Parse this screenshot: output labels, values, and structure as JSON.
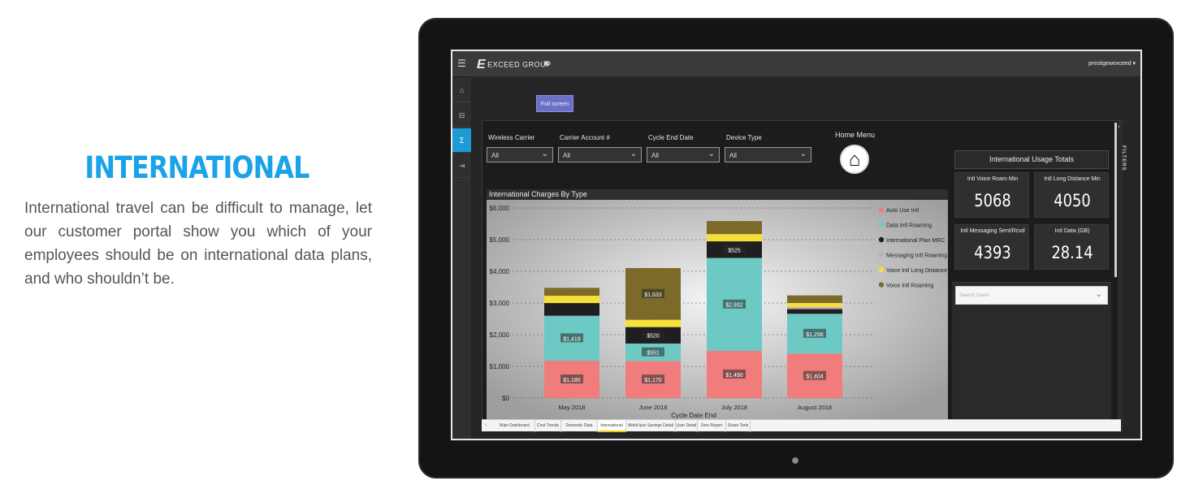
{
  "promo": {
    "heading": "INTERNATIONAL",
    "body": "International travel can be difficult to manage, let our customer portal show you which of your employees should be on international data plans, and who shouldn’t be."
  },
  "app": {
    "brand": "EXCEED GROUP",
    "user": "prestigewexceed",
    "fullscreen_label": "Full screen"
  },
  "filters": [
    {
      "label": "Wireless Carrier",
      "value": "All"
    },
    {
      "label": "Carrier Account #",
      "value": "All"
    },
    {
      "label": "Cycle End Date",
      "value": "All"
    },
    {
      "label": "Device Type",
      "value": "All"
    }
  ],
  "home_menu": {
    "label": "Home Menu"
  },
  "kpis": {
    "title": "International Usage Totals",
    "cards": [
      {
        "label": "Intl Voice Roam Min",
        "value": "5068"
      },
      {
        "label": "Intl Long Distance Min",
        "value": "4050"
      },
      {
        "label": "Intl Messaging Sent/Rcvd",
        "value": "4393"
      },
      {
        "label": "Intl Data (GB)",
        "value": "28.14"
      }
    ]
  },
  "search": {
    "placeholder": "Search Users"
  },
  "filters_pane_label": "FILTERS",
  "tabs": [
    {
      "label": "Main Dashboard",
      "active": false
    },
    {
      "label": "Cost Trends",
      "active": false
    },
    {
      "label": "Domestic Data",
      "active": false
    },
    {
      "label": "International",
      "active": true
    },
    {
      "label": "Mobil-lyze Savings Detail",
      "active": false
    },
    {
      "label": "User Detail",
      "active": false
    },
    {
      "label": "Zero Report",
      "active": false
    },
    {
      "label": "Share Tank",
      "active": false
    }
  ],
  "chart_data": {
    "type": "bar",
    "stacked": true,
    "title": "International Charges By Type",
    "xlabel": "Cycle Date End",
    "ylabel": "",
    "ylim": [
      0,
      6000
    ],
    "yticks": [
      "$0",
      "$1,000",
      "$2,000",
      "$3,000",
      "$4,000",
      "$5,000",
      "$6,000"
    ],
    "categories": [
      "May 2018",
      "June 2018",
      "July 2018",
      "August 2018"
    ],
    "legend_position": "right",
    "series": [
      {
        "name": "Auto Use Intl",
        "color": "#f17c7c",
        "values": [
          1180,
          1170,
          1490,
          1404
        ]
      },
      {
        "name": "Data Intl Roaming",
        "color": "#6cc9c4",
        "values": [
          1419,
          551,
          2932,
          1256
        ]
      },
      {
        "name": "International Plan MRC",
        "color": "#1f1f1f",
        "values": [
          400,
          520,
          525,
          150
        ]
      },
      {
        "name": "Messaging Intl Roaming",
        "color": "#c9a7c8",
        "values": [
          0,
          0,
          0,
          60
        ]
      },
      {
        "name": "Voice Intl Long Distance",
        "color": "#f5e03a",
        "values": [
          230,
          230,
          230,
          130
        ]
      },
      {
        "name": "Voice Intl Roaming",
        "color": "#7b6a2a",
        "values": [
          250,
          1633,
          410,
          240
        ]
      }
    ],
    "data_labels": [
      {
        "series": 0,
        "labels": [
          "$1,180",
          "$1,170",
          "$1,490",
          "$1,404"
        ]
      },
      {
        "series": 1,
        "labels": [
          "$1,419",
          "$551",
          "$2,932",
          "$1,256"
        ]
      },
      {
        "series": 2,
        "labels": [
          "",
          "$520",
          "$525",
          ""
        ]
      },
      {
        "series": 5,
        "labels": [
          "",
          "$1,633",
          "",
          ""
        ]
      }
    ]
  }
}
